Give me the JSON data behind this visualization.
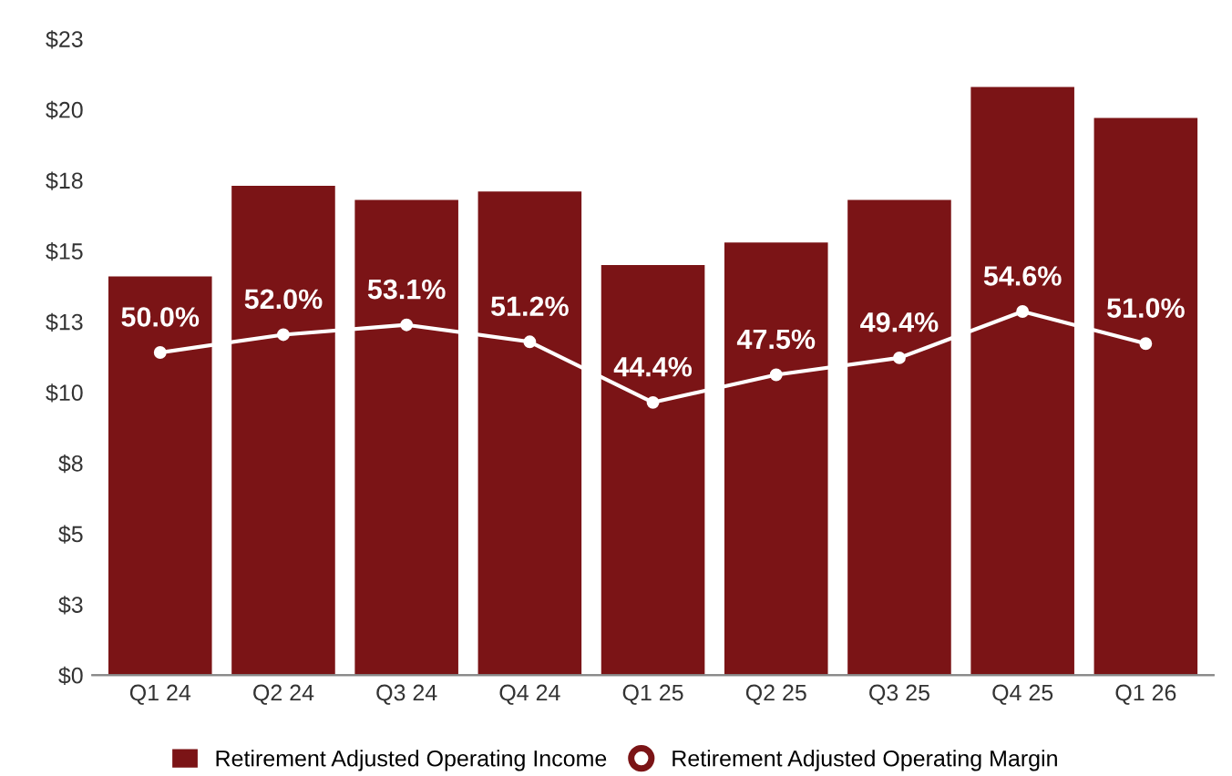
{
  "chart_data": {
    "type": "bar",
    "categories": [
      "Q1 24",
      "Q2 24",
      "Q3 24",
      "Q4 24",
      "Q1 25",
      "Q2 25",
      "Q3 25",
      "Q4 25",
      "Q1 26"
    ],
    "series": [
      {
        "name": "Retirement Adjusted Operating Income",
        "color": "#7b1416",
        "values": [
          14.1,
          17.3,
          16.8,
          17.1,
          14.5,
          15.3,
          16.8,
          20.8,
          19.7
        ]
      },
      {
        "name": "Retirement Adjusted Operating Margin",
        "type": "line",
        "axis": "y2",
        "color": "#ffffff",
        "marker": "circle",
        "values": [
          50.0,
          52.0,
          53.1,
          51.2,
          44.4,
          47.5,
          49.4,
          54.6,
          51.0
        ],
        "value_labels": [
          "50.0%",
          "52.0%",
          "53.1%",
          "51.2%",
          "44.4%",
          "47.5%",
          "49.4%",
          "54.6%",
          "51.0%"
        ]
      }
    ],
    "ylim": [
      0,
      22.5
    ],
    "yticks": [
      {
        "value": 0,
        "label": "$0"
      },
      {
        "value": 2.5,
        "label": "$3"
      },
      {
        "value": 5,
        "label": "$5"
      },
      {
        "value": 7.5,
        "label": "$8"
      },
      {
        "value": 10,
        "label": "$10"
      },
      {
        "value": 12.5,
        "label": "$13"
      },
      {
        "value": 15,
        "label": "$15"
      },
      {
        "value": 17.5,
        "label": "$18"
      },
      {
        "value": 20,
        "label": "$20"
      },
      {
        "value": 22.5,
        "label": "$23"
      }
    ],
    "grid": false,
    "legend": "bottom"
  }
}
